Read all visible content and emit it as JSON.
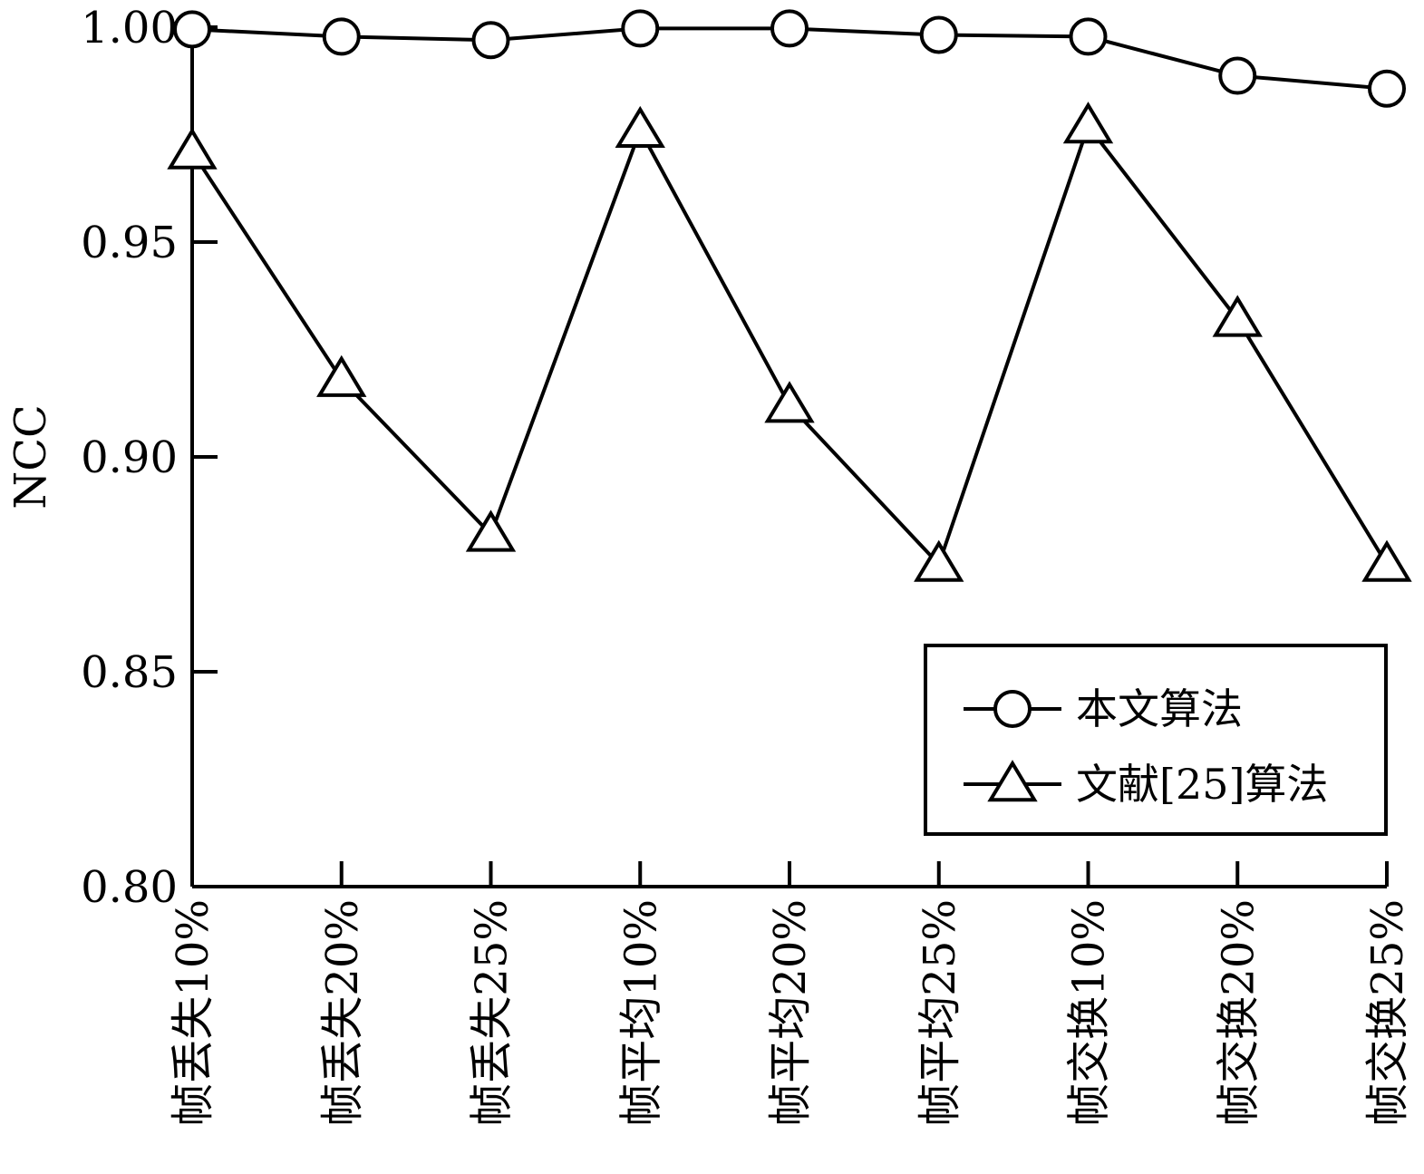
{
  "chart_data": {
    "type": "line",
    "title": "",
    "xlabel": "",
    "ylabel": "NCC",
    "ylim": [
      0.8,
      1.0
    ],
    "yticks": [
      "0.80",
      "0.85",
      "0.90",
      "0.95",
      "1.00"
    ],
    "categories": [
      "帧丢失10%",
      "帧丢失20%",
      "帧丢失25%",
      "帧平均10%",
      "帧平均20%",
      "帧平均25%",
      "帧交换10%",
      "帧交换20%",
      "帧交换25%"
    ],
    "grid": false,
    "legend_position": "bottom-right",
    "series": [
      {
        "name": "本文算法",
        "marker": "circle",
        "values": [
          0.9995,
          0.9978,
          0.997,
          0.9997,
          0.9997,
          0.9982,
          0.9978,
          0.9887,
          0.9857
        ]
      },
      {
        "name": "文献[25]算法",
        "marker": "triangle",
        "values": [
          0.971,
          0.918,
          0.882,
          0.976,
          0.912,
          0.875,
          0.977,
          0.932,
          0.875
        ]
      }
    ]
  }
}
